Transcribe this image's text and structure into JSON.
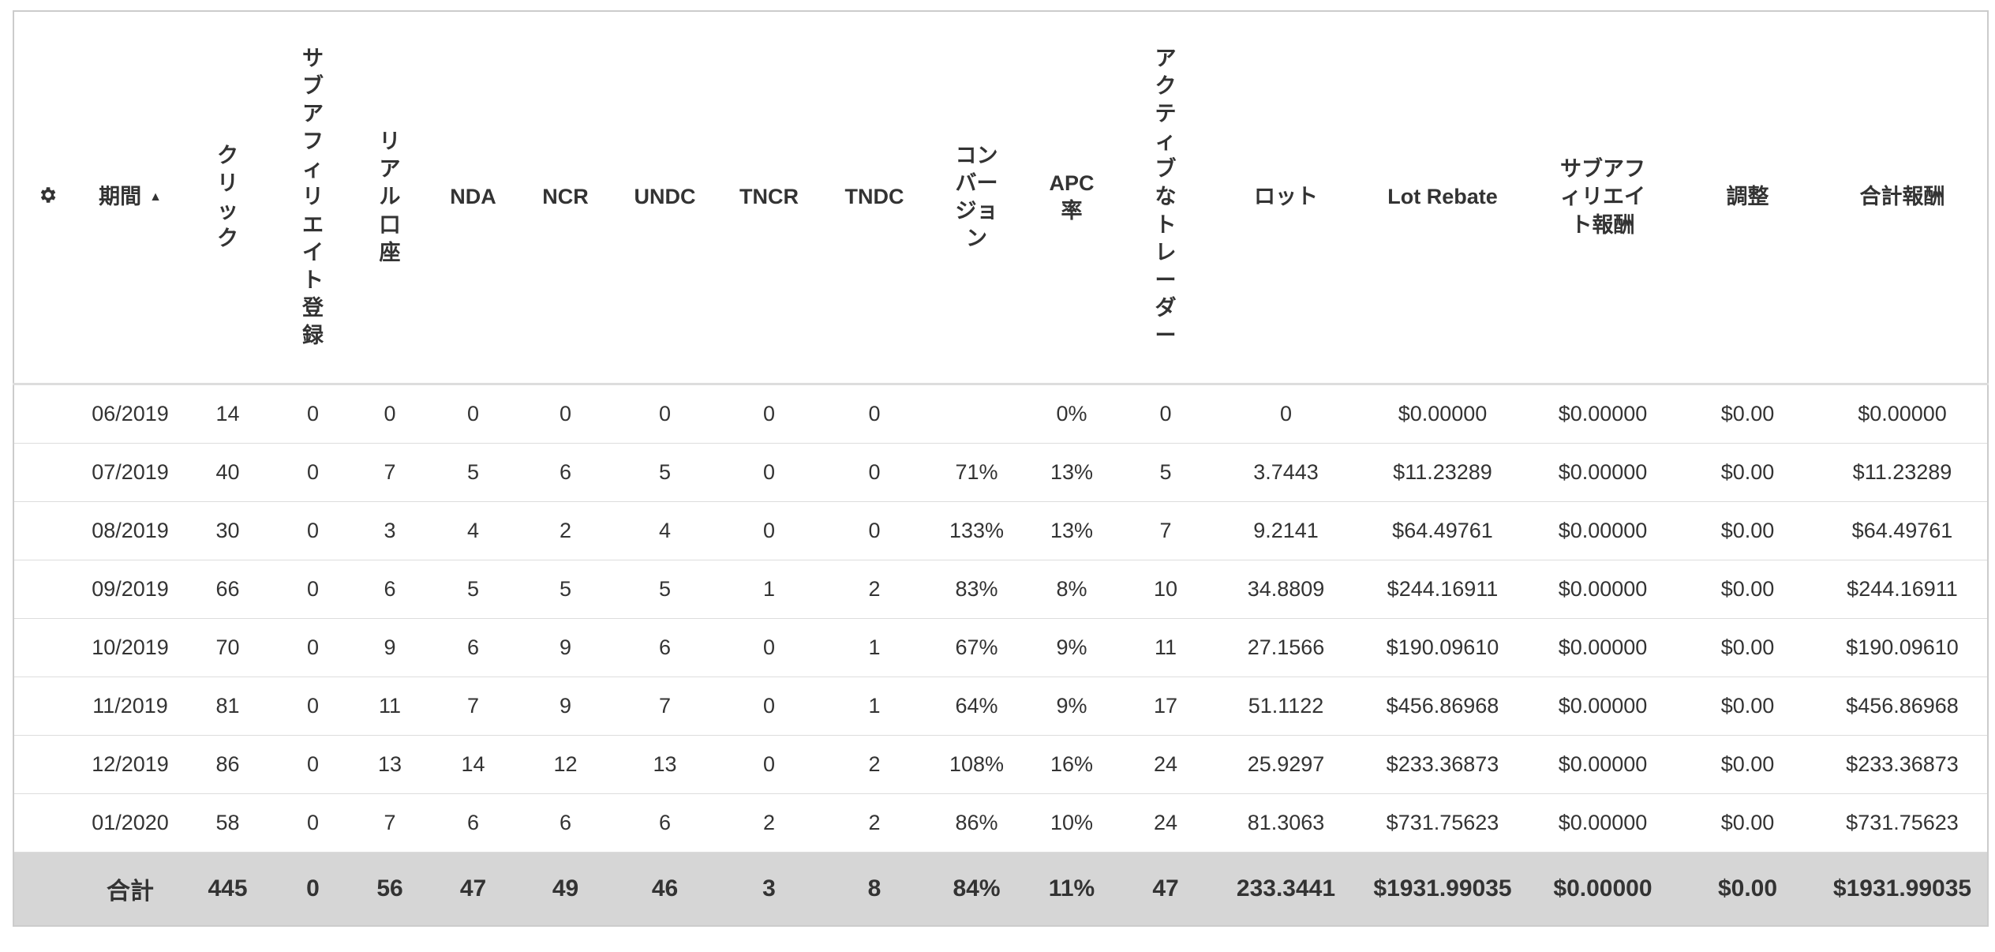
{
  "table": {
    "header": [
      "期間",
      "クリック",
      "サブアフィリエイト登録",
      "リアル口座",
      "NDA",
      "NCR",
      "UNDC",
      "TNCR",
      "TNDC",
      "コンバージョン",
      "APC率",
      "アクティブなトレーダー",
      "ロット",
      "Lot Rebate",
      "サブアフィリエイト報酬",
      "調整",
      "合計報酬"
    ],
    "rows": [
      [
        "06/2019",
        "14",
        "0",
        "0",
        "0",
        "0",
        "0",
        "0",
        "0",
        null,
        "0%",
        "0",
        "0",
        "$0.00000",
        "$0.00000",
        "$0.00",
        "$0.00000"
      ],
      [
        "07/2019",
        "40",
        "0",
        "7",
        "5",
        "6",
        "5",
        "0",
        "0",
        "71%",
        "13%",
        "5",
        "3.7443",
        "$11.23289",
        "$0.00000",
        "$0.00",
        "$11.23289"
      ],
      [
        "08/2019",
        "30",
        "0",
        "3",
        "4",
        "2",
        "4",
        "0",
        "0",
        "133%",
        "13%",
        "7",
        "9.2141",
        "$64.49761",
        "$0.00000",
        "$0.00",
        "$64.49761"
      ],
      [
        "09/2019",
        "66",
        "0",
        "6",
        "5",
        "5",
        "5",
        "1",
        "2",
        "83%",
        "8%",
        "10",
        "34.8809",
        "$244.16911",
        "$0.00000",
        "$0.00",
        "$244.16911"
      ],
      [
        "10/2019",
        "70",
        "0",
        "9",
        "6",
        "9",
        "6",
        "0",
        "1",
        "67%",
        "9%",
        "11",
        "27.1566",
        "$190.09610",
        "$0.00000",
        "$0.00",
        "$190.09610"
      ],
      [
        "11/2019",
        "81",
        "0",
        "11",
        "7",
        "9",
        "7",
        "0",
        "1",
        "64%",
        "9%",
        "17",
        "51.1122",
        "$456.86968",
        "$0.00000",
        "$0.00",
        "$456.86968"
      ],
      [
        "12/2019",
        "86",
        "0",
        "13",
        "14",
        "12",
        "13",
        "0",
        "2",
        "108%",
        "16%",
        "24",
        "25.9297",
        "$233.36873",
        "$0.00000",
        "$0.00",
        "$233.36873"
      ],
      [
        "01/2020",
        "58",
        "0",
        "7",
        "6",
        "6",
        "6",
        "2",
        "2",
        "86%",
        "10%",
        "24",
        "81.3063",
        "$731.75623",
        "$0.00000",
        "$0.00",
        "$731.75623"
      ]
    ],
    "total": [
      "合計",
      "445",
      "0",
      "56",
      "47",
      "49",
      "46",
      "3",
      "8",
      "84%",
      "11%",
      "47",
      "233.3441",
      "$1931.99035",
      "$0.00000",
      "$0.00",
      "$1931.99035"
    ]
  }
}
